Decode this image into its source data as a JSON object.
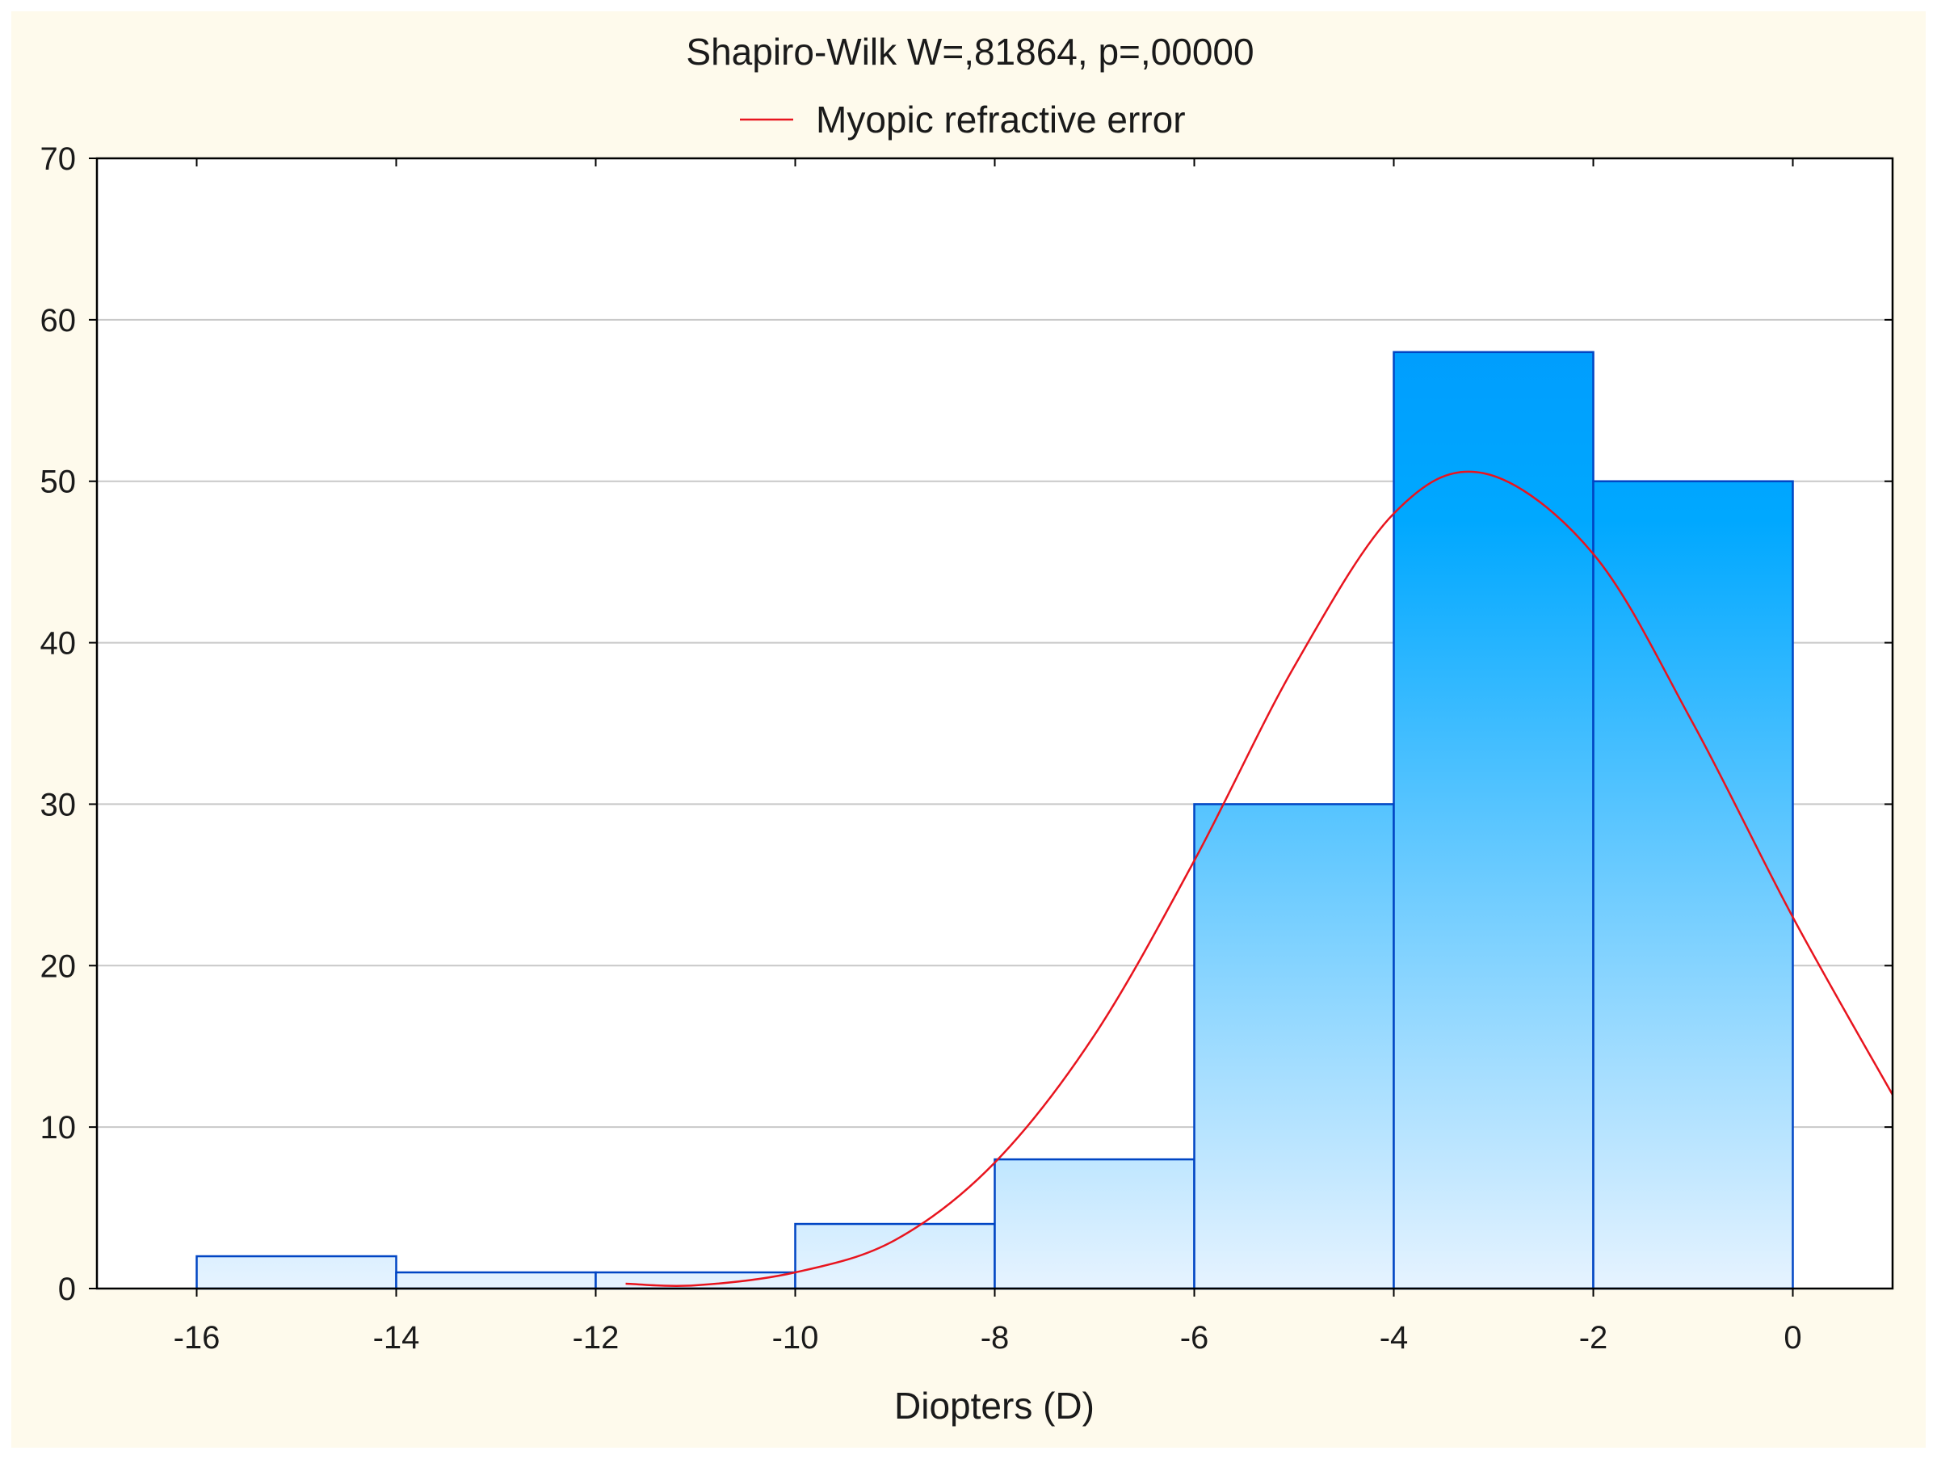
{
  "chart_data": {
    "type": "bar",
    "title": "Shapiro-Wilk W=,81864, p=,00000",
    "xlabel": "Diopters (D)",
    "ylabel": "",
    "xlim": [
      -17,
      1
    ],
    "ylim": [
      0,
      70
    ],
    "x_ticks": [
      -16,
      -14,
      -12,
      -10,
      -8,
      -6,
      -4,
      -2,
      0
    ],
    "y_ticks": [
      0,
      10,
      20,
      30,
      40,
      50,
      60,
      70
    ],
    "grid": "horizontal",
    "legend_position": "top-center",
    "bins": [
      {
        "start": -16,
        "end": -14,
        "value": 2
      },
      {
        "start": -14,
        "end": -12,
        "value": 1
      },
      {
        "start": -12,
        "end": -10,
        "value": 1
      },
      {
        "start": -10,
        "end": -8,
        "value": 4
      },
      {
        "start": -8,
        "end": -6,
        "value": 8
      },
      {
        "start": -6,
        "end": -4,
        "value": 30
      },
      {
        "start": -4,
        "end": -2,
        "value": 58
      },
      {
        "start": -2,
        "end": 0,
        "value": 50
      }
    ],
    "series": [
      {
        "name": "Myopic refractive error",
        "type": "line",
        "color": "#e8141e",
        "x": [
          -11.7,
          -11,
          -10,
          -9,
          -8,
          -7,
          -6,
          -5,
          -4,
          -3.1,
          -2,
          -1,
          0,
          1
        ],
        "y": [
          0.3,
          0.2,
          1.0,
          3.0,
          7.8,
          15.7,
          26.5,
          38.5,
          48.0,
          50.5,
          45.5,
          35.0,
          23.0,
          12.0
        ]
      }
    ],
    "colors": {
      "bar_top": "#0092fb",
      "bar_mid": "#00a8ff",
      "bar_bottom": "#e6f3ff",
      "bar_edge": "#0045c4",
      "curve": "#e8141e",
      "grid": "#c8c8c8",
      "background": "#fefaec",
      "plot_bg": "#ffffff"
    }
  }
}
